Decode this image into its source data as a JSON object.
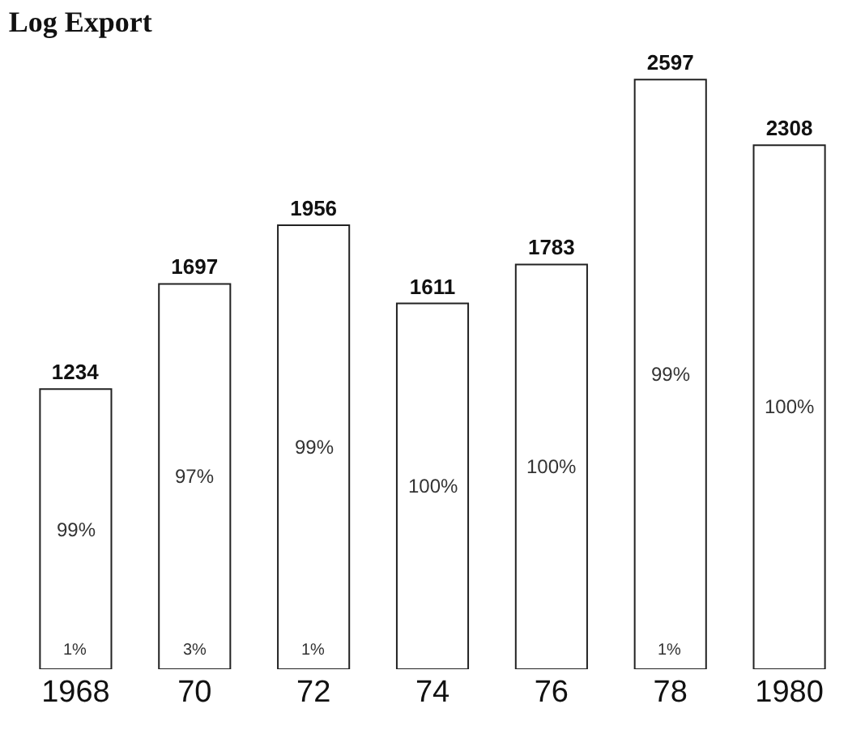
{
  "chart_data": {
    "type": "bar",
    "title": "Log Export",
    "data_labels": true,
    "legend": false,
    "categories": [
      "1968",
      "70",
      "72",
      "74",
      "76",
      "78",
      "1980"
    ],
    "color": "#ffffff",
    "values": [
      1234,
      1697,
      1956,
      1611,
      1783,
      2597,
      2308
    ],
    "annotations": [
      "99%",
      "1%",
      "97%",
      "3%",
      "99%",
      "1%",
      "100%",
      "100%",
      "99%",
      "1%",
      "100%"
    ]
  }
}
